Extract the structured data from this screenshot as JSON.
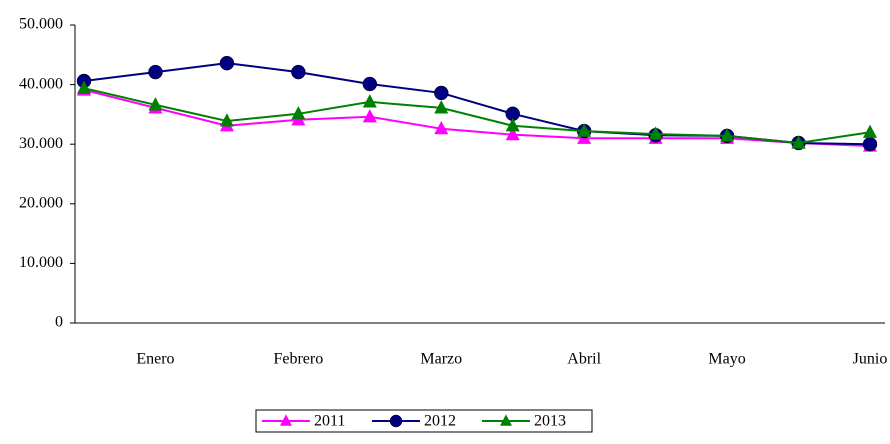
{
  "chart_data": {
    "type": "line",
    "categories": [
      null,
      "Enero",
      null,
      "Febrero",
      null,
      "Marzo",
      null,
      "Abril",
      null,
      "Mayo",
      null,
      "Junio"
    ],
    "series": [
      {
        "name": "2011",
        "color": "#ff00ff",
        "marker": "triangle",
        "values": [
          39100,
          36100,
          33100,
          34100,
          34600,
          32600,
          31600,
          31000,
          31000,
          31000,
          30200,
          29700
        ]
      },
      {
        "name": "2012",
        "color": "#000080",
        "marker": "circle",
        "values": [
          40600,
          42100,
          43600,
          42100,
          40100,
          38600,
          35100,
          32200,
          31500,
          31400,
          30200,
          30000
        ]
      },
      {
        "name": "2013",
        "color": "#008000",
        "marker": "triangle",
        "values": [
          39400,
          36600,
          33900,
          35100,
          37100,
          36100,
          33100,
          32200,
          31700,
          31400,
          30200,
          32000
        ]
      }
    ],
    "ylim": [
      0,
      50000
    ],
    "yticks": [
      0,
      {
        "value": 10000,
        "label": "10.000"
      },
      {
        "value": 20000,
        "label": "20.000"
      },
      {
        "value": 30000,
        "label": "30.000"
      },
      {
        "value": 40000,
        "label": "40.000"
      },
      {
        "value": 50000,
        "label": "50.000"
      }
    ],
    "grid": false,
    "legend": "bottom"
  }
}
